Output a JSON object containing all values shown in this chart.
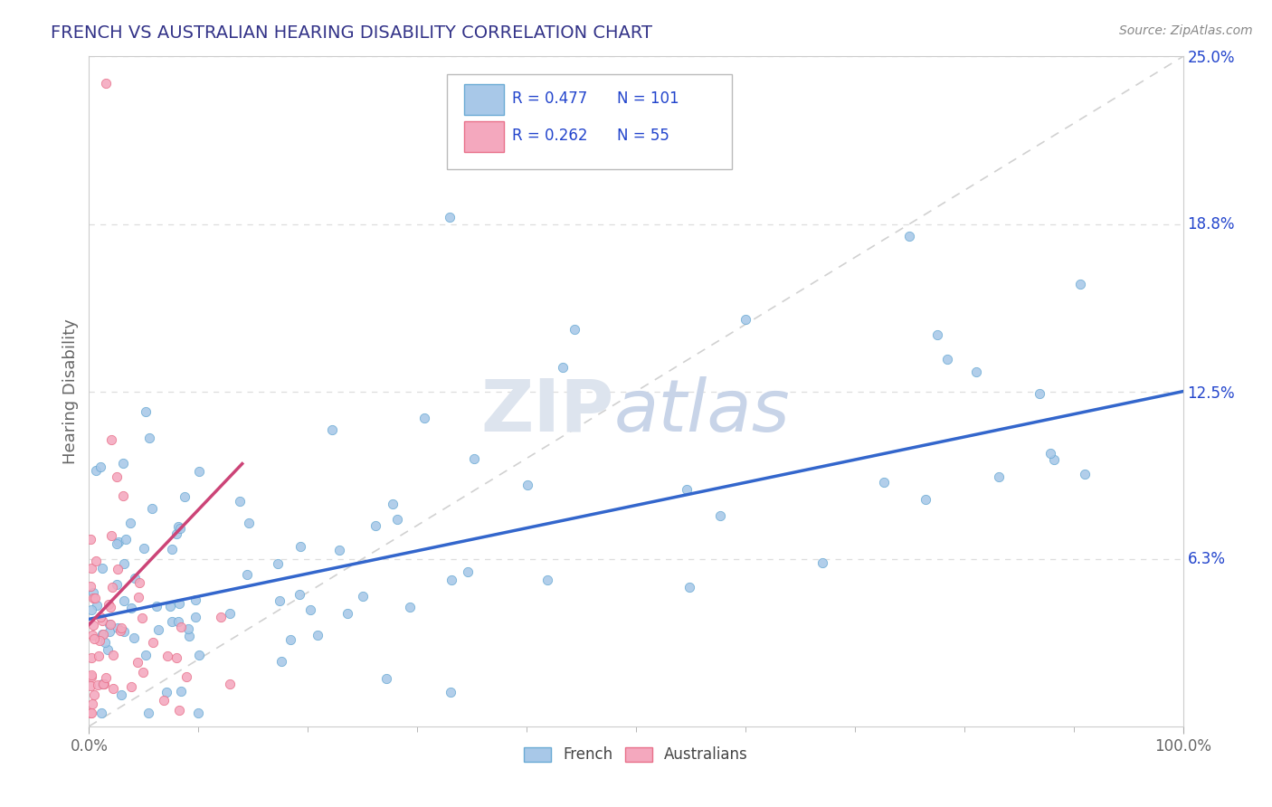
{
  "title": "FRENCH VS AUSTRALIAN HEARING DISABILITY CORRELATION CHART",
  "source": "Source: ZipAtlas.com",
  "ylabel": "Hearing Disability",
  "xlim": [
    0,
    1.0
  ],
  "ylim": [
    0,
    0.25
  ],
  "right_yticks": [
    0.063,
    0.125,
    0.188,
    0.25
  ],
  "right_yticklabels": [
    "6.3%",
    "12.5%",
    "18.8%",
    "25.0%"
  ],
  "french_R": 0.477,
  "french_N": 101,
  "australian_R": 0.262,
  "australian_N": 55,
  "french_scatter_color": "#a8c8e8",
  "french_edge_color": "#6aaad4",
  "australian_scatter_color": "#f4a8be",
  "australian_edge_color": "#e8708a",
  "title_color": "#333388",
  "legend_R_color": "#2244cc",
  "legend_N_color": "#2244cc",
  "watermark_color": "#dde4ee",
  "french_line_color": "#3366cc",
  "australian_line_color": "#cc4477",
  "diagonal_color": "#cccccc",
  "background_color": "#ffffff",
  "grid_color": "#dddddd",
  "source_color": "#888888",
  "xtick_color": "#666666",
  "ytick_color": "#2244cc",
  "ylabel_color": "#666666"
}
